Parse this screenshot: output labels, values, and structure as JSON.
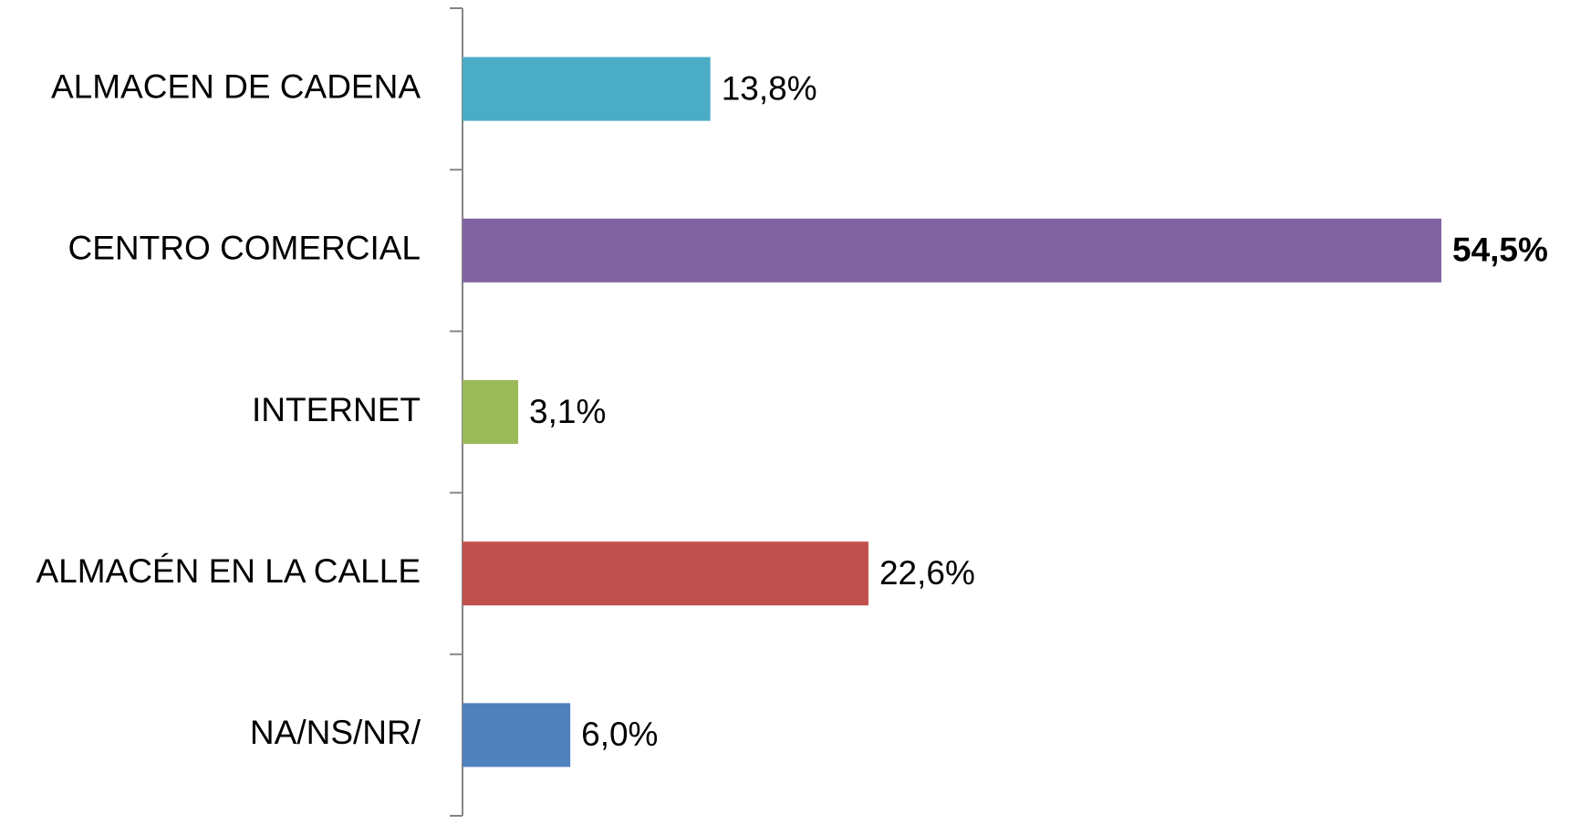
{
  "chart_data": {
    "type": "bar",
    "orientation": "horizontal",
    "categories": [
      "ALMACEN DE CADENA",
      "CENTRO COMERCIAL",
      "INTERNET",
      "ALMACÉN EN LA CALLE",
      "NA/NS/NR/"
    ],
    "values": [
      13.8,
      54.5,
      3.1,
      22.6,
      6.0
    ],
    "value_labels": [
      "13,8%",
      "54,5%",
      "3,1%",
      "22,6%",
      "6,0%"
    ],
    "colors": [
      "#4bacc6",
      "#8064a2",
      "#9bbb59",
      "#c0504d",
      "#4f81bd"
    ]
  }
}
